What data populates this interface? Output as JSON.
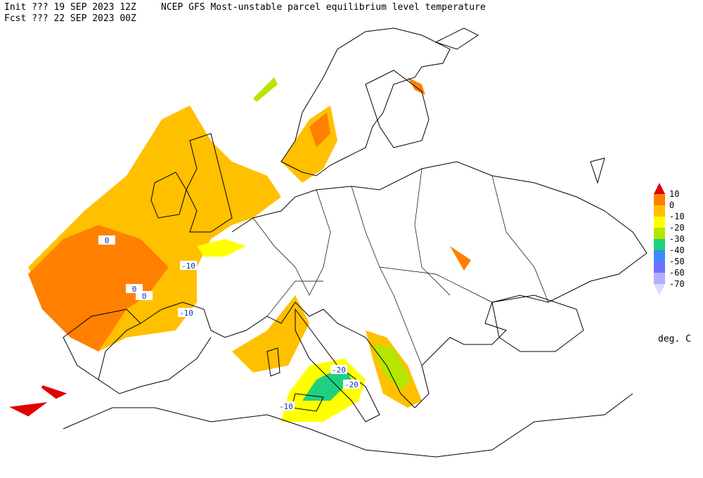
{
  "header": {
    "init": "Init  ??? 19 SEP 2023 12Z",
    "title": "NCEP GFS Most-unstable parcel equilibrium level temperature",
    "fcst": "Fcst ??? 22 SEP 2023 00Z"
  },
  "map": {
    "contour_labels": [
      "0",
      "0",
      "0",
      "-10",
      "-10",
      "-20",
      "-20",
      "-10"
    ]
  },
  "legend": {
    "colors": [
      "#e00000",
      "#ff8000",
      "#ffc000",
      "#ffff00",
      "#b4e600",
      "#20d080",
      "#3c8cff",
      "#7070ff",
      "#b0b0ff",
      "#dcdcff"
    ],
    "labels": [
      "10",
      "0",
      "-10",
      "-20",
      "-30",
      "-40",
      "-50",
      "-60",
      "-70"
    ],
    "units": "deg. C"
  }
}
